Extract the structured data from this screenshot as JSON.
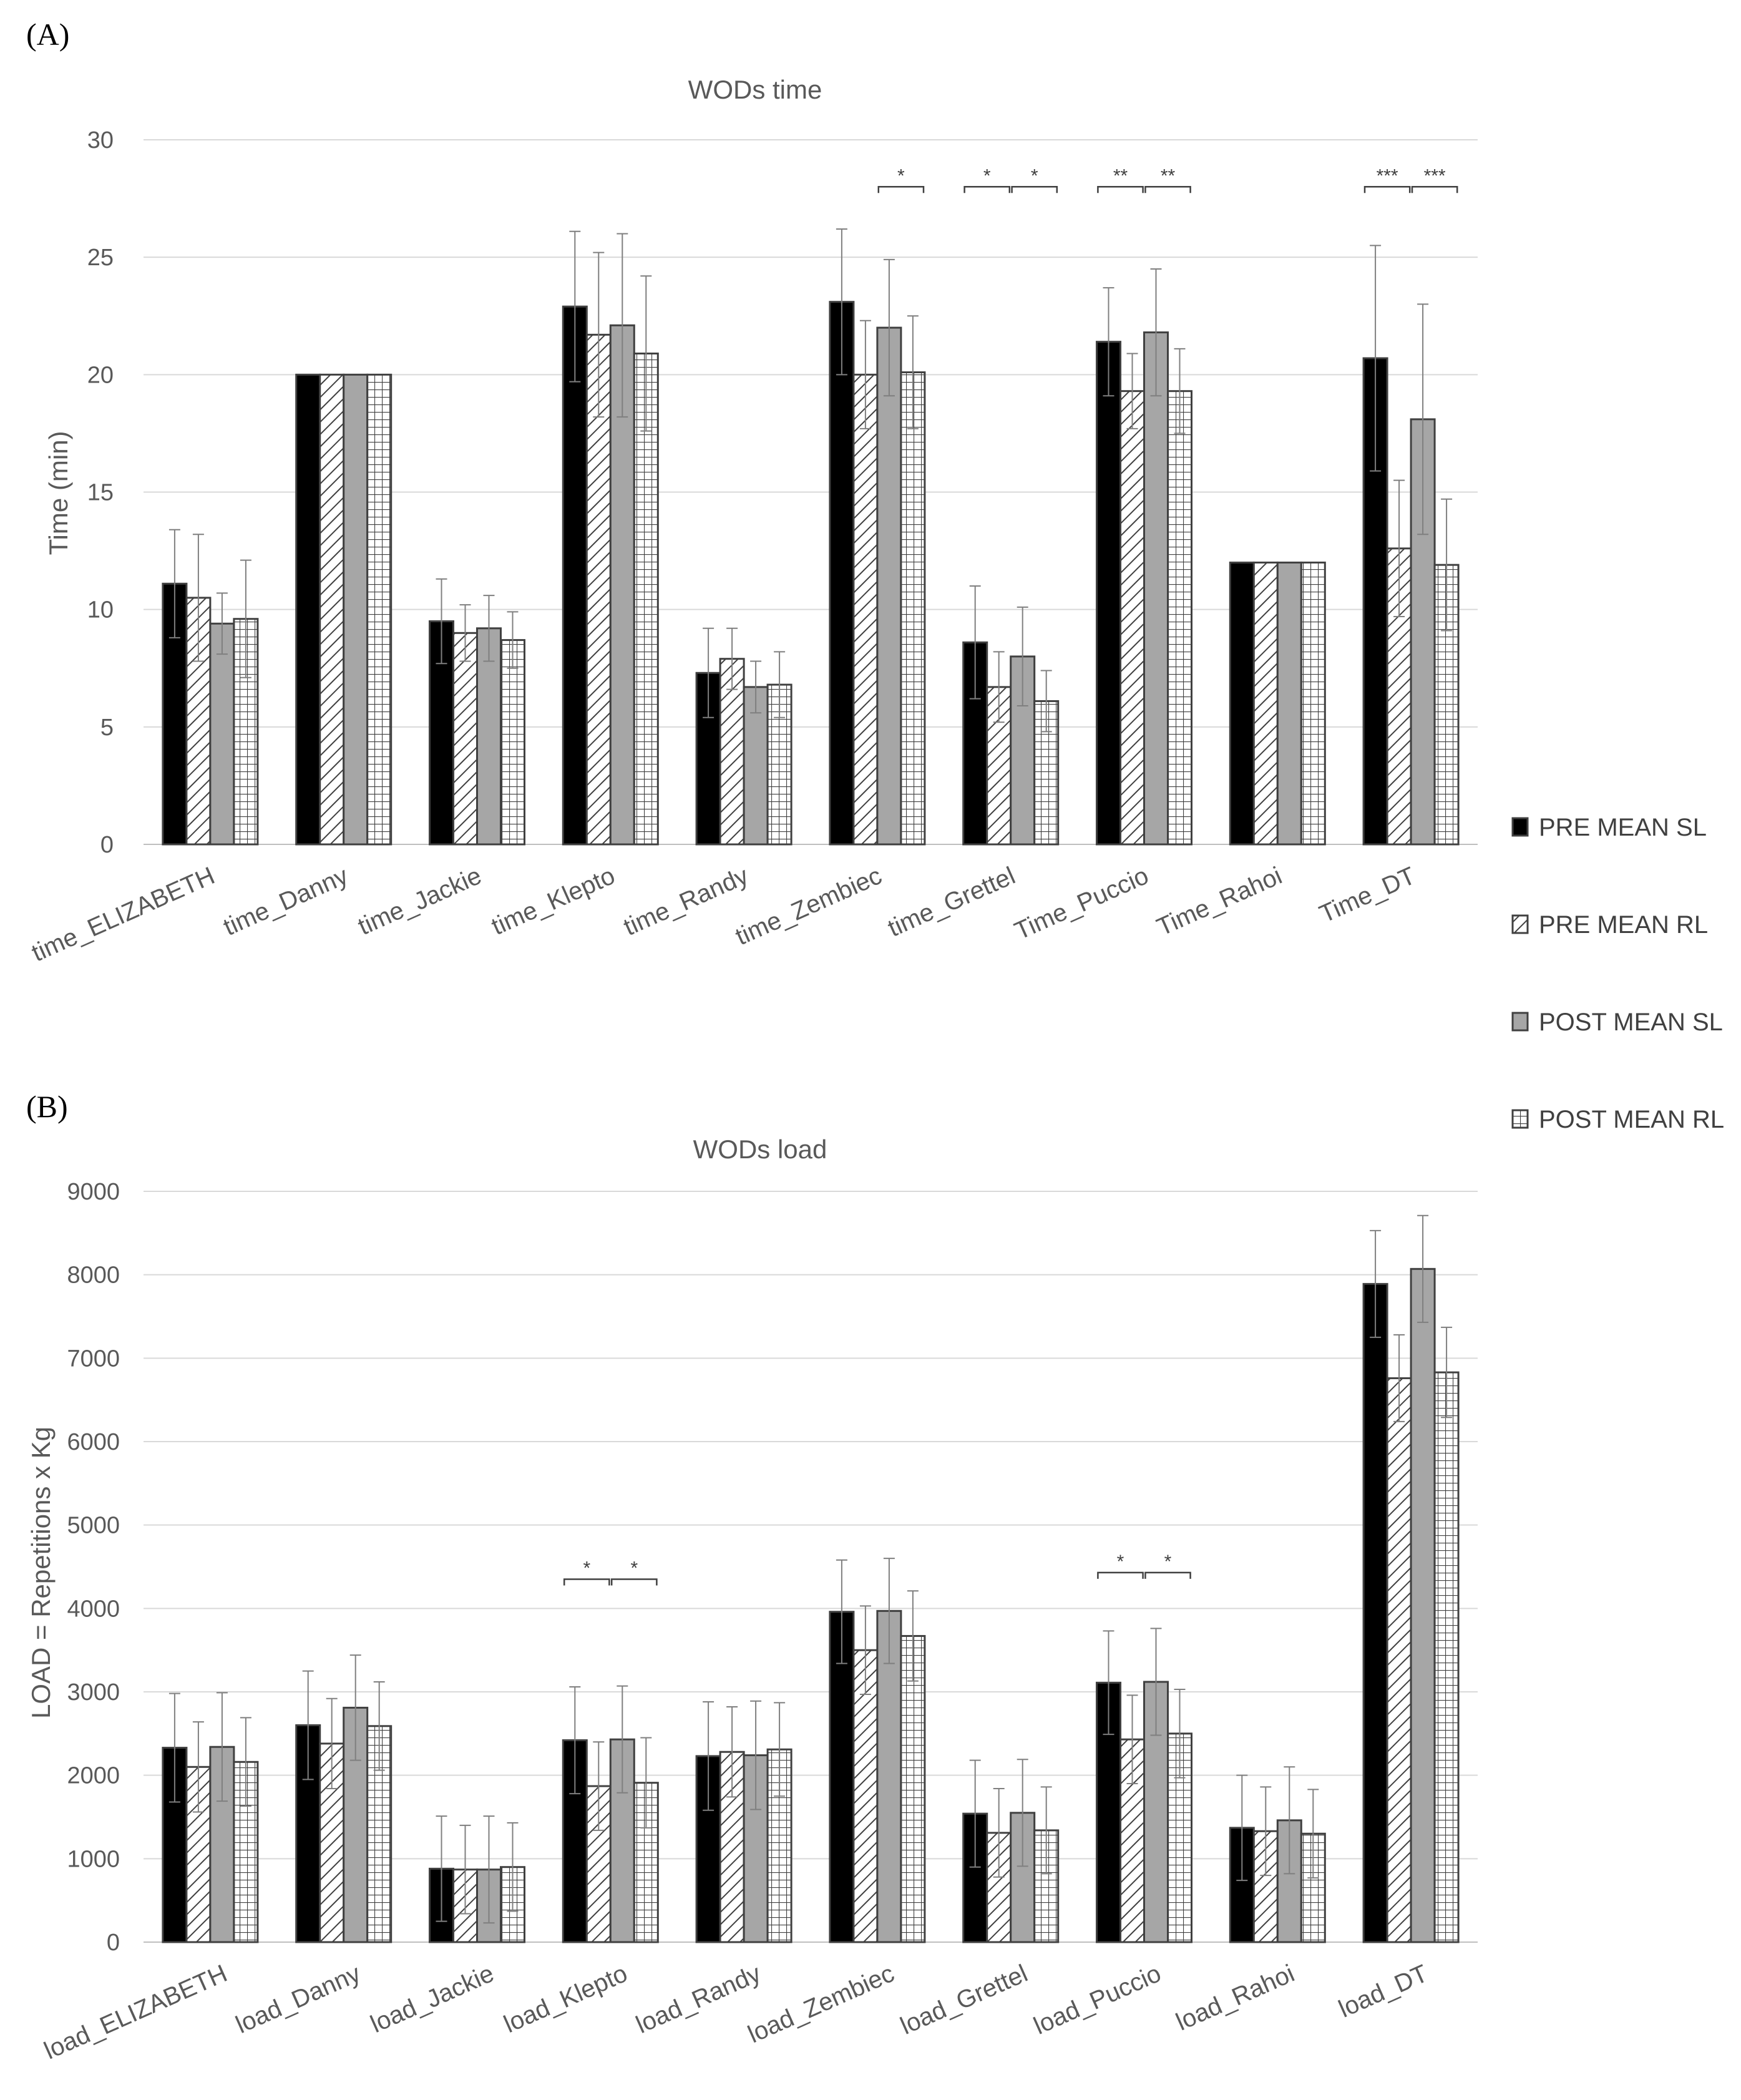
{
  "figure": {
    "label_a": "(A)",
    "label_b": "(B)"
  },
  "colors": {
    "black": "#000000",
    "gray": "#a6a6a6",
    "outline": "#404040",
    "grid": "#d9d9d9",
    "text": "#595959"
  },
  "legend": [
    {
      "label": "PRE MEAN SL",
      "pattern": "solid-black"
    },
    {
      "label": "PRE MEAN RL",
      "pattern": "diagonal-hatch"
    },
    {
      "label": "POST MEAN SL",
      "pattern": "solid-gray"
    },
    {
      "label": "POST MEAN RL",
      "pattern": "grid-hatch"
    }
  ],
  "chart_data": [
    {
      "type": "bar",
      "title": "WODs time",
      "xlabel": "",
      "ylabel": "Time (min)",
      "ylim": [
        0,
        30
      ],
      "yticks": [
        "0",
        "5",
        "10",
        "15",
        "20",
        "25",
        "30"
      ],
      "grid": true,
      "categories": [
        "time_ELIZABETH",
        "time_Danny",
        "time_Jackie",
        "time_Klepto",
        "time_Randy",
        "time_Zembiec",
        "time_Grettel",
        "Time_Puccio",
        "Time_Rahoi",
        "Time_DT"
      ],
      "series": [
        {
          "name": "PRE MEAN SL",
          "values": [
            11.1,
            20,
            9.5,
            22.9,
            7.3,
            23.1,
            8.6,
            21.4,
            12,
            20.7
          ],
          "errors": [
            2.3,
            0,
            1.8,
            3.2,
            1.9,
            3.1,
            2.4,
            2.3,
            0,
            4.8
          ]
        },
        {
          "name": "PRE MEAN RL",
          "values": [
            10.5,
            20,
            9.0,
            21.7,
            7.9,
            20.0,
            6.7,
            19.3,
            12,
            12.6
          ],
          "errors": [
            2.7,
            0,
            1.2,
            3.5,
            1.3,
            2.3,
            1.5,
            1.6,
            0,
            2.9
          ]
        },
        {
          "name": "POST MEAN SL",
          "values": [
            9.4,
            20,
            9.2,
            22.1,
            6.7,
            22.0,
            8.0,
            21.8,
            12,
            18.1
          ],
          "errors": [
            1.3,
            0,
            1.4,
            3.9,
            1.1,
            2.9,
            2.1,
            2.7,
            0,
            4.9
          ]
        },
        {
          "name": "POST MEAN RL",
          "values": [
            9.6,
            20,
            8.7,
            20.9,
            6.8,
            20.1,
            6.1,
            19.3,
            12,
            11.9
          ],
          "errors": [
            2.5,
            0,
            1.2,
            3.3,
            1.4,
            2.4,
            1.3,
            1.8,
            0,
            2.8
          ]
        }
      ],
      "annotations": [
        {
          "text": "*",
          "category": "time_Zembiec",
          "from": "POST MEAN SL",
          "to": "POST MEAN RL",
          "y": 28
        },
        {
          "text": "*",
          "category": "time_Grettel",
          "from": "PRE MEAN SL",
          "to": "PRE MEAN RL",
          "y": 28
        },
        {
          "text": "*",
          "category": "time_Grettel",
          "from": "POST MEAN SL",
          "to": "POST MEAN RL",
          "y": 28
        },
        {
          "text": "**",
          "category": "Time_Puccio",
          "from": "PRE MEAN SL",
          "to": "PRE MEAN RL",
          "y": 28
        },
        {
          "text": "**",
          "category": "Time_Puccio",
          "from": "POST MEAN SL",
          "to": "POST MEAN RL",
          "y": 28
        },
        {
          "text": "***",
          "category": "Time_DT",
          "from": "PRE MEAN SL",
          "to": "PRE MEAN RL",
          "y": 28
        },
        {
          "text": "***",
          "category": "Time_DT",
          "from": "POST MEAN SL",
          "to": "POST MEAN RL",
          "y": 28
        }
      ]
    },
    {
      "type": "bar",
      "title": "WODs load",
      "xlabel": "",
      "ylabel": "LOAD = Repetitions x Kg",
      "ylim": [
        0,
        9000
      ],
      "yticks": [
        "0",
        "1000",
        "2000",
        "3000",
        "4000",
        "5000",
        "6000",
        "7000",
        "8000",
        "9000"
      ],
      "grid": true,
      "categories": [
        "load_ELIZABETH",
        "load_Danny",
        "load_Jackie",
        "load_Klepto",
        "load_Randy",
        "load_Zembiec",
        "load_Grettel",
        "load_Puccio",
        "load_Rahoi",
        "load_DT"
      ],
      "series": [
        {
          "name": "PRE MEAN SL",
          "values": [
            2330,
            2600,
            880,
            2420,
            2230,
            3960,
            1540,
            3110,
            1370,
            7890
          ],
          "errors": [
            650,
            650,
            630,
            640,
            650,
            620,
            640,
            620,
            630,
            640
          ]
        },
        {
          "name": "PRE MEAN RL",
          "values": [
            2100,
            2380,
            870,
            1870,
            2280,
            3500,
            1310,
            2430,
            1330,
            6760
          ],
          "errors": [
            540,
            540,
            530,
            530,
            540,
            530,
            530,
            530,
            530,
            520
          ]
        },
        {
          "name": "POST MEAN SL",
          "values": [
            2340,
            2810,
            870,
            2430,
            2240,
            3970,
            1550,
            3120,
            1460,
            8070
          ],
          "errors": [
            650,
            630,
            640,
            640,
            650,
            630,
            640,
            640,
            640,
            640
          ]
        },
        {
          "name": "POST MEAN RL",
          "values": [
            2160,
            2590,
            900,
            1910,
            2310,
            3670,
            1340,
            2500,
            1300,
            6830
          ],
          "errors": [
            530,
            530,
            530,
            540,
            560,
            540,
            520,
            530,
            530,
            540
          ]
        }
      ],
      "annotations": [
        {
          "text": "*",
          "category": "load_Klepto",
          "from": "PRE MEAN SL",
          "to": "PRE MEAN RL",
          "y": 4350
        },
        {
          "text": "*",
          "category": "load_Klepto",
          "from": "POST MEAN SL",
          "to": "POST MEAN RL",
          "y": 4350
        },
        {
          "text": "*",
          "category": "load_Puccio",
          "from": "PRE MEAN SL",
          "to": "PRE MEAN RL",
          "y": 4430
        },
        {
          "text": "*",
          "category": "load_Puccio",
          "from": "POST MEAN SL",
          "to": "POST MEAN RL",
          "y": 4430
        }
      ]
    }
  ]
}
